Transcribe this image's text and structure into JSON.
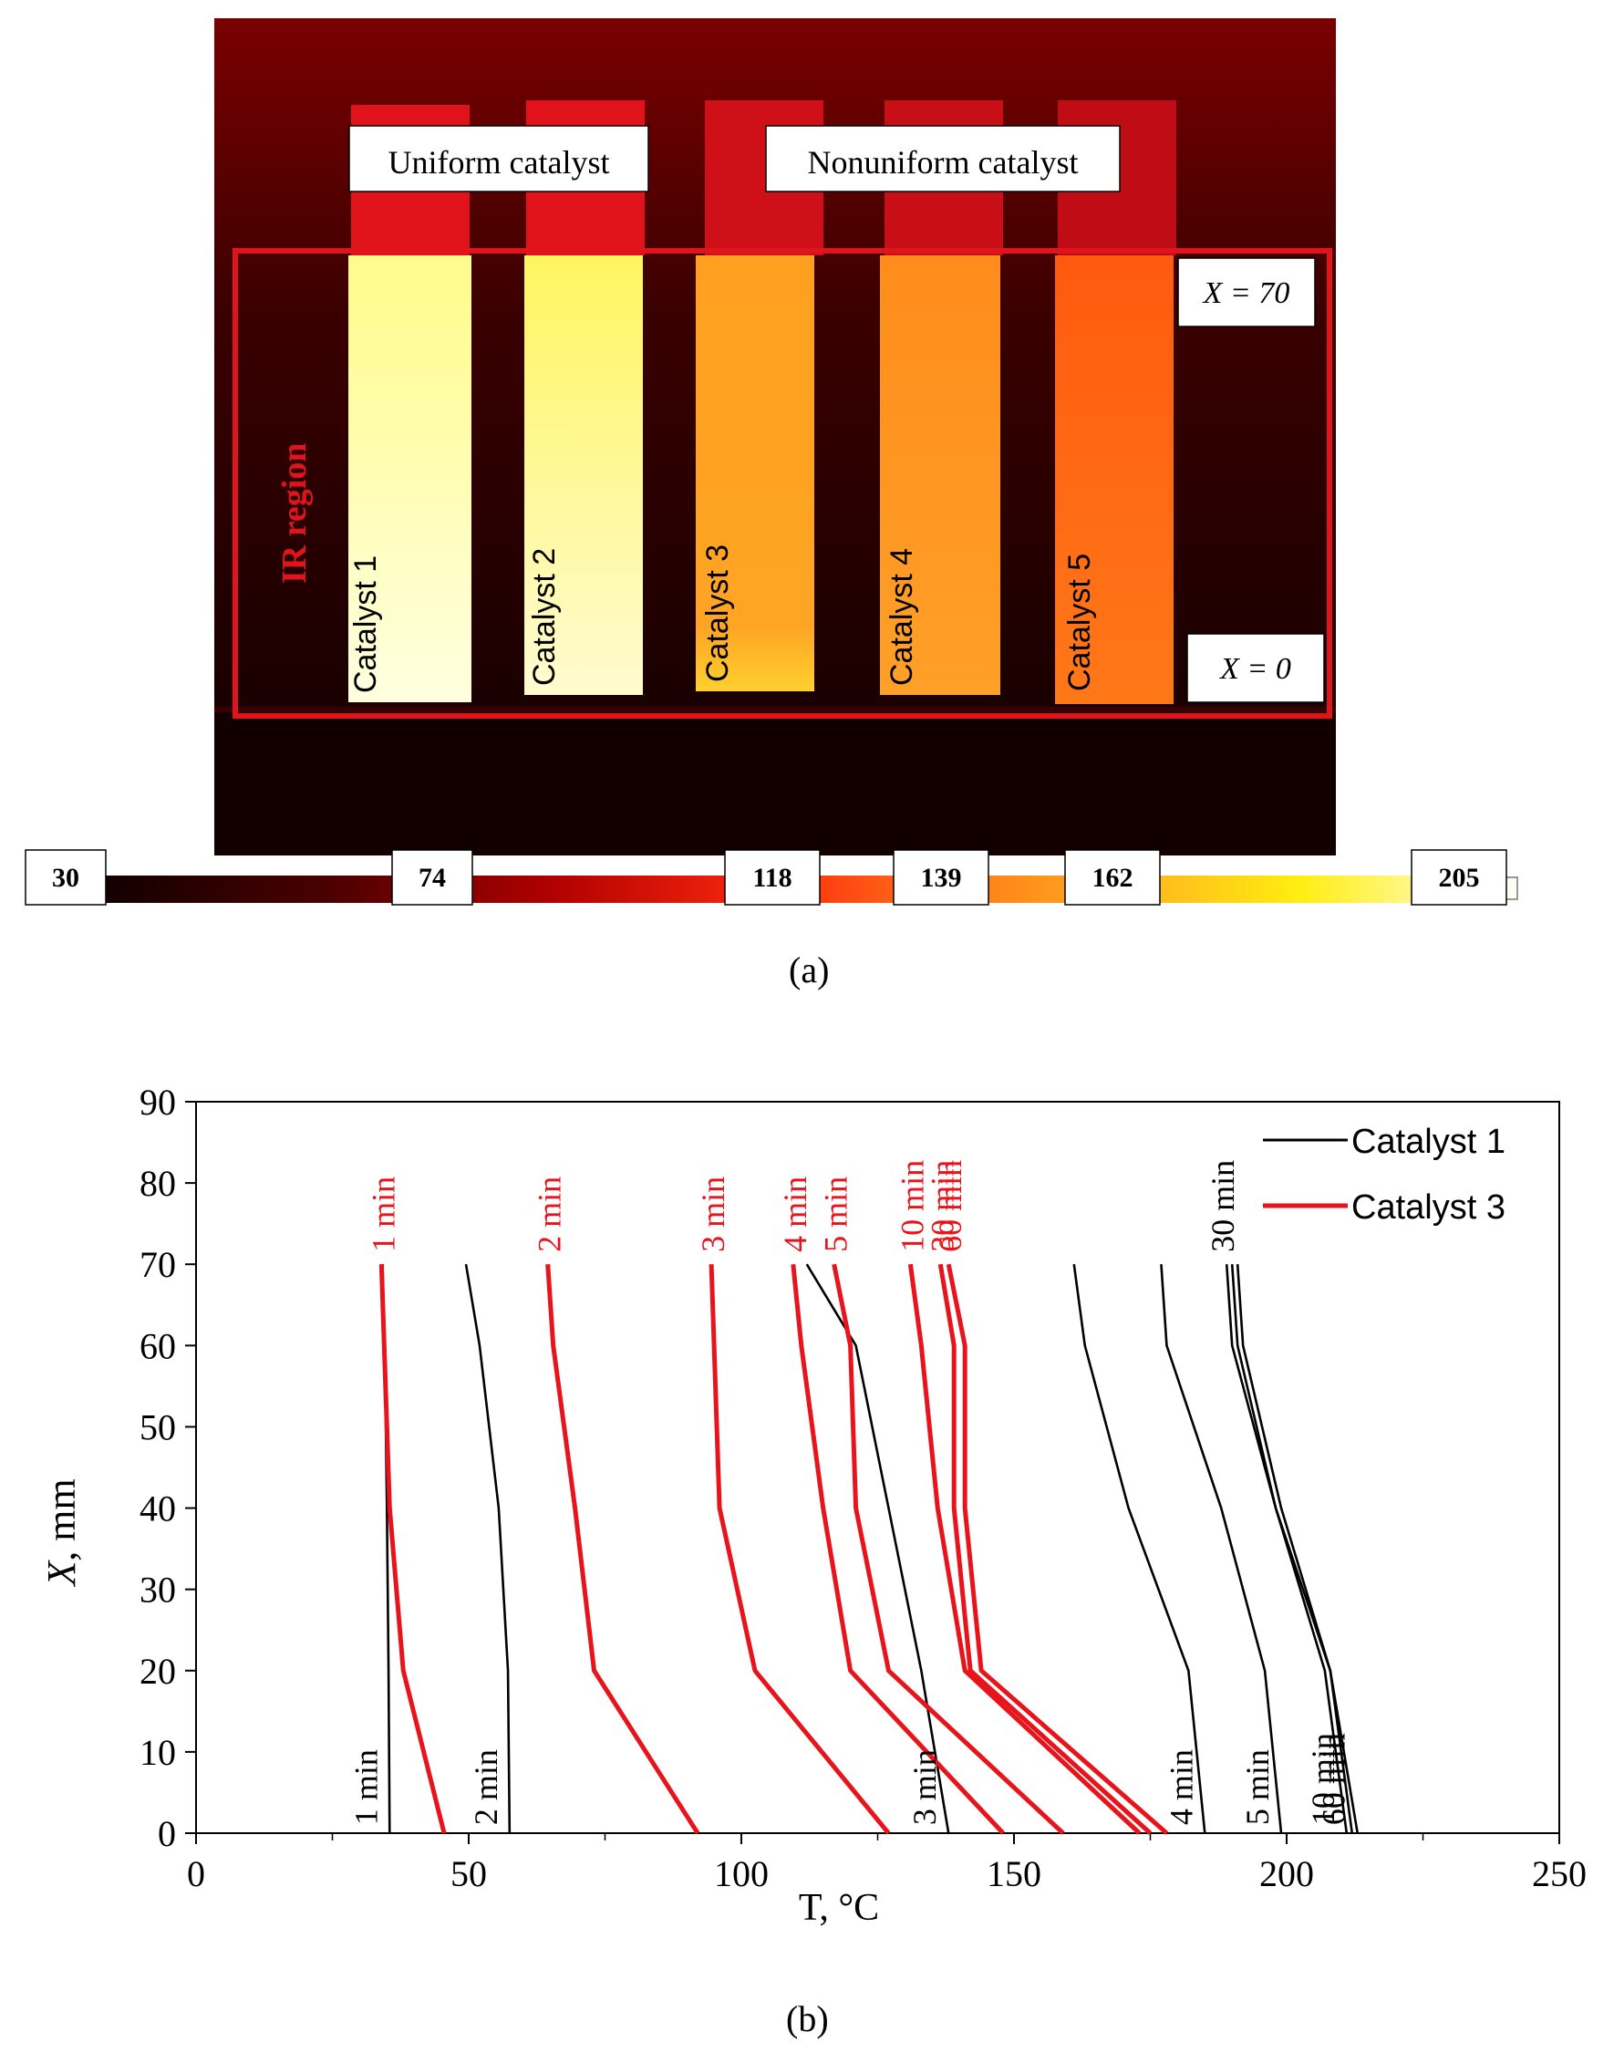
{
  "panel_a": {
    "label": "(a)",
    "box_uniform": "Uniform catalyst",
    "box_nonuniform": "Nonuniform catalyst",
    "region_label": "IR region",
    "x_top": "X = 70",
    "x_bottom": "X = 0",
    "strips": [
      {
        "label": "Catalyst 1",
        "color_top": "#fffb8a",
        "color_bottom": "#ffffe0"
      },
      {
        "label": "Catalyst 2",
        "color_top": "#fff560",
        "color_bottom": "#fffbd0"
      },
      {
        "label": "Catalyst 3",
        "color_top": "#ffa020",
        "color_bottom": "#ffc830"
      },
      {
        "label": "Catalyst 4",
        "color_top": "#ff8c1c",
        "color_bottom": "#ffa028"
      },
      {
        "label": "Catalyst 5",
        "color_top": "#ff5a10",
        "color_bottom": "#ff7818"
      }
    ],
    "scale_values": [
      "30",
      "74",
      "118",
      "139",
      "162",
      "205"
    ],
    "colors": {
      "frame": "#e0141c",
      "bg_dark": "#2a0000"
    }
  },
  "panel_b": {
    "label": "(b)"
  },
  "chart_data": {
    "type": "line",
    "xlabel": "T, °C",
    "ylabel": "X, mm",
    "xlim": [
      0,
      250
    ],
    "ylim": [
      0,
      90
    ],
    "xticks": [
      "0",
      "50",
      "100",
      "150",
      "200",
      "250"
    ],
    "yticks": [
      "0",
      "10",
      "20",
      "30",
      "40",
      "50",
      "60",
      "70",
      "80",
      "90"
    ],
    "legend": [
      {
        "name": "Catalyst 1",
        "color": "#000000"
      },
      {
        "name": "Catalyst 3",
        "color": "#e8141c"
      }
    ],
    "legend_position": "top-right",
    "series": [
      {
        "group": "Catalyst 1",
        "label": "1 min",
        "color": "#000000",
        "x": [
          35.5,
          35.3,
          35.0,
          34.6,
          34.2
        ],
        "y": [
          0,
          20,
          40,
          60,
          70
        ]
      },
      {
        "group": "Catalyst 1",
        "label": "2 min",
        "color": "#000000",
        "x": [
          57.5,
          57.2,
          55.5,
          52.0,
          49.5
        ],
        "y": [
          0,
          20,
          40,
          60,
          70
        ]
      },
      {
        "group": "Catalyst 1",
        "label": "3 min",
        "color": "#000000",
        "x": [
          138,
          133,
          127,
          121,
          112
        ],
        "y": [
          0,
          20,
          40,
          60,
          70
        ]
      },
      {
        "group": "Catalyst 1",
        "label": "4 min",
        "color": "#000000",
        "x": [
          185,
          182,
          171,
          163,
          161
        ],
        "y": [
          0,
          20,
          40,
          60,
          70
        ]
      },
      {
        "group": "Catalyst 1",
        "label": "5 min",
        "color": "#000000",
        "x": [
          199,
          196,
          188,
          178,
          177
        ],
        "y": [
          0,
          20,
          40,
          60,
          70
        ]
      },
      {
        "group": "Catalyst 1",
        "label": "10 min",
        "color": "#000000",
        "x": [
          211,
          207,
          198,
          190,
          189
        ],
        "y": [
          0,
          20,
          40,
          60,
          70
        ]
      },
      {
        "group": "Catalyst 1",
        "label": "30 min",
        "color": "#000000",
        "x": [
          212,
          208,
          198,
          191,
          190
        ],
        "y": [
          0,
          20,
          40,
          60,
          70
        ]
      },
      {
        "group": "Catalyst 1",
        "label": "60 min",
        "color": "#000000",
        "x": [
          213,
          208,
          199,
          192,
          191
        ],
        "y": [
          0,
          20,
          40,
          60,
          70
        ]
      },
      {
        "group": "Catalyst 3",
        "label": "1 min",
        "color": "#e8141c",
        "x": [
          45.5,
          38,
          35.5,
          34.5,
          34
        ],
        "y": [
          0,
          20,
          40,
          60,
          70
        ]
      },
      {
        "group": "Catalyst 3",
        "label": "2 min",
        "color": "#e8141c",
        "x": [
          92,
          73,
          69.5,
          65.5,
          64.5
        ],
        "y": [
          0,
          20,
          40,
          60,
          70
        ]
      },
      {
        "group": "Catalyst 3",
        "label": "3 min",
        "color": "#e8141c",
        "x": [
          127,
          102.5,
          96,
          95,
          94.5
        ],
        "y": [
          0,
          20,
          40,
          60,
          70
        ]
      },
      {
        "group": "Catalyst 3",
        "label": "4 min",
        "color": "#e8141c",
        "x": [
          148,
          120,
          115,
          111,
          109.5
        ],
        "y": [
          0,
          20,
          40,
          60,
          70
        ]
      },
      {
        "group": "Catalyst 3",
        "label": "5 min",
        "color": "#e8141c",
        "x": [
          159,
          127,
          121,
          120,
          117
        ],
        "y": [
          0,
          20,
          40,
          60,
          70
        ]
      },
      {
        "group": "Catalyst 3",
        "label": "10 min",
        "color": "#e8141c",
        "x": [
          173,
          141,
          136,
          133,
          131
        ],
        "y": [
          0,
          20,
          40,
          60,
          70
        ]
      },
      {
        "group": "Catalyst 3",
        "label": "30 min",
        "color": "#e8141c",
        "x": [
          175,
          142,
          139,
          139,
          136.5
        ],
        "y": [
          0,
          20,
          40,
          60,
          70
        ]
      },
      {
        "group": "Catalyst 3",
        "label": "60 min",
        "color": "#e8141c",
        "x": [
          178,
          144,
          141,
          141,
          138
        ],
        "y": [
          0,
          20,
          40,
          60,
          70
        ]
      }
    ]
  }
}
